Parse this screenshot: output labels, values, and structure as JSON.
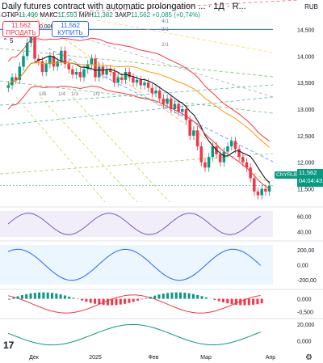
{
  "header": {
    "title": "Daily futures contract with automatic prolongation ... · 1Д · R...",
    "currency": "RUB",
    "ohlc": {
      "o_label": "ОТКР",
      "o": "11,490",
      "h_label": "МАКС",
      "h": "11,593",
      "l_label": "МИН",
      "l": "11,382",
      "c_label": "ЗАКР",
      "c": "11,562",
      "change": "+0,085 (+0,74%)"
    },
    "sell_price": "11,562",
    "sell_label": "ПРОДАТЬ",
    "spread": "0,000",
    "buy_price": "11,562",
    "buy_label": "КУПИТЬ",
    "collapse_icon": "chevron-up-icon",
    "collapse_count": "5"
  },
  "price_tag": {
    "symbol": "CNYRUB.P",
    "price": "11,562",
    "countdown": "04:04:43"
  },
  "colors": {
    "up": "#089981",
    "down": "#f23645",
    "accent": "#2962ff"
  },
  "chart_data": {
    "type": "candlestick",
    "price_axis": [
      "14,500",
      "14,000",
      "13,500",
      "13,000",
      "12,500",
      "12,000",
      "11,500"
    ],
    "price_range": [
      11.25,
      14.75
    ],
    "time_axis": [
      "Дек",
      "2025",
      "Фев",
      "Мар",
      "Апр"
    ],
    "fib_labels": [
      "1/8",
      "1/4",
      "1/3",
      "1/2",
      "2/1",
      "3/1",
      "4/1"
    ],
    "candles_close": [
      13.45,
      13.6,
      13.55,
      13.8,
      14.0,
      14.25,
      14.38,
      13.95,
      13.9,
      13.7,
      13.85,
      14.0,
      13.8,
      13.9,
      14.1,
      13.85,
      13.75,
      13.65,
      13.7,
      13.6,
      13.75,
      13.85,
      13.95,
      13.6,
      13.8,
      13.65,
      13.75,
      13.7,
      13.5,
      13.6,
      13.55,
      13.7,
      13.6,
      13.5,
      13.55,
      13.45,
      13.5,
      13.4,
      13.3,
      13.35,
      13.2,
      13.1,
      13.2,
      13.0,
      13.1,
      12.95,
      13.0,
      12.8,
      12.5,
      12.6,
      12.3,
      12.0,
      11.9,
      12.1,
      12.3,
      12.15,
      12.0,
      12.2,
      12.3,
      12.4,
      12.25,
      12.1,
      12.0,
      11.9,
      11.7,
      11.45,
      11.38,
      11.5,
      11.45,
      11.562
    ],
    "last_price": 11.562,
    "indicators": [
      {
        "name": "rsi",
        "axis": [
          "60,00",
          "40,00"
        ],
        "range": [
          30,
          70
        ]
      },
      {
        "name": "cci",
        "axis": [
          "200,00",
          "0,00",
          "-200,00"
        ],
        "range": [
          -300,
          300
        ]
      },
      {
        "name": "macd",
        "axis": [
          "0,000",
          "-0,500"
        ],
        "range": [
          -0.7,
          0.3
        ]
      },
      {
        "name": "oscillator",
        "axis": [
          "20,000",
          "0,000"
        ],
        "range": [
          -10,
          25
        ]
      }
    ]
  }
}
